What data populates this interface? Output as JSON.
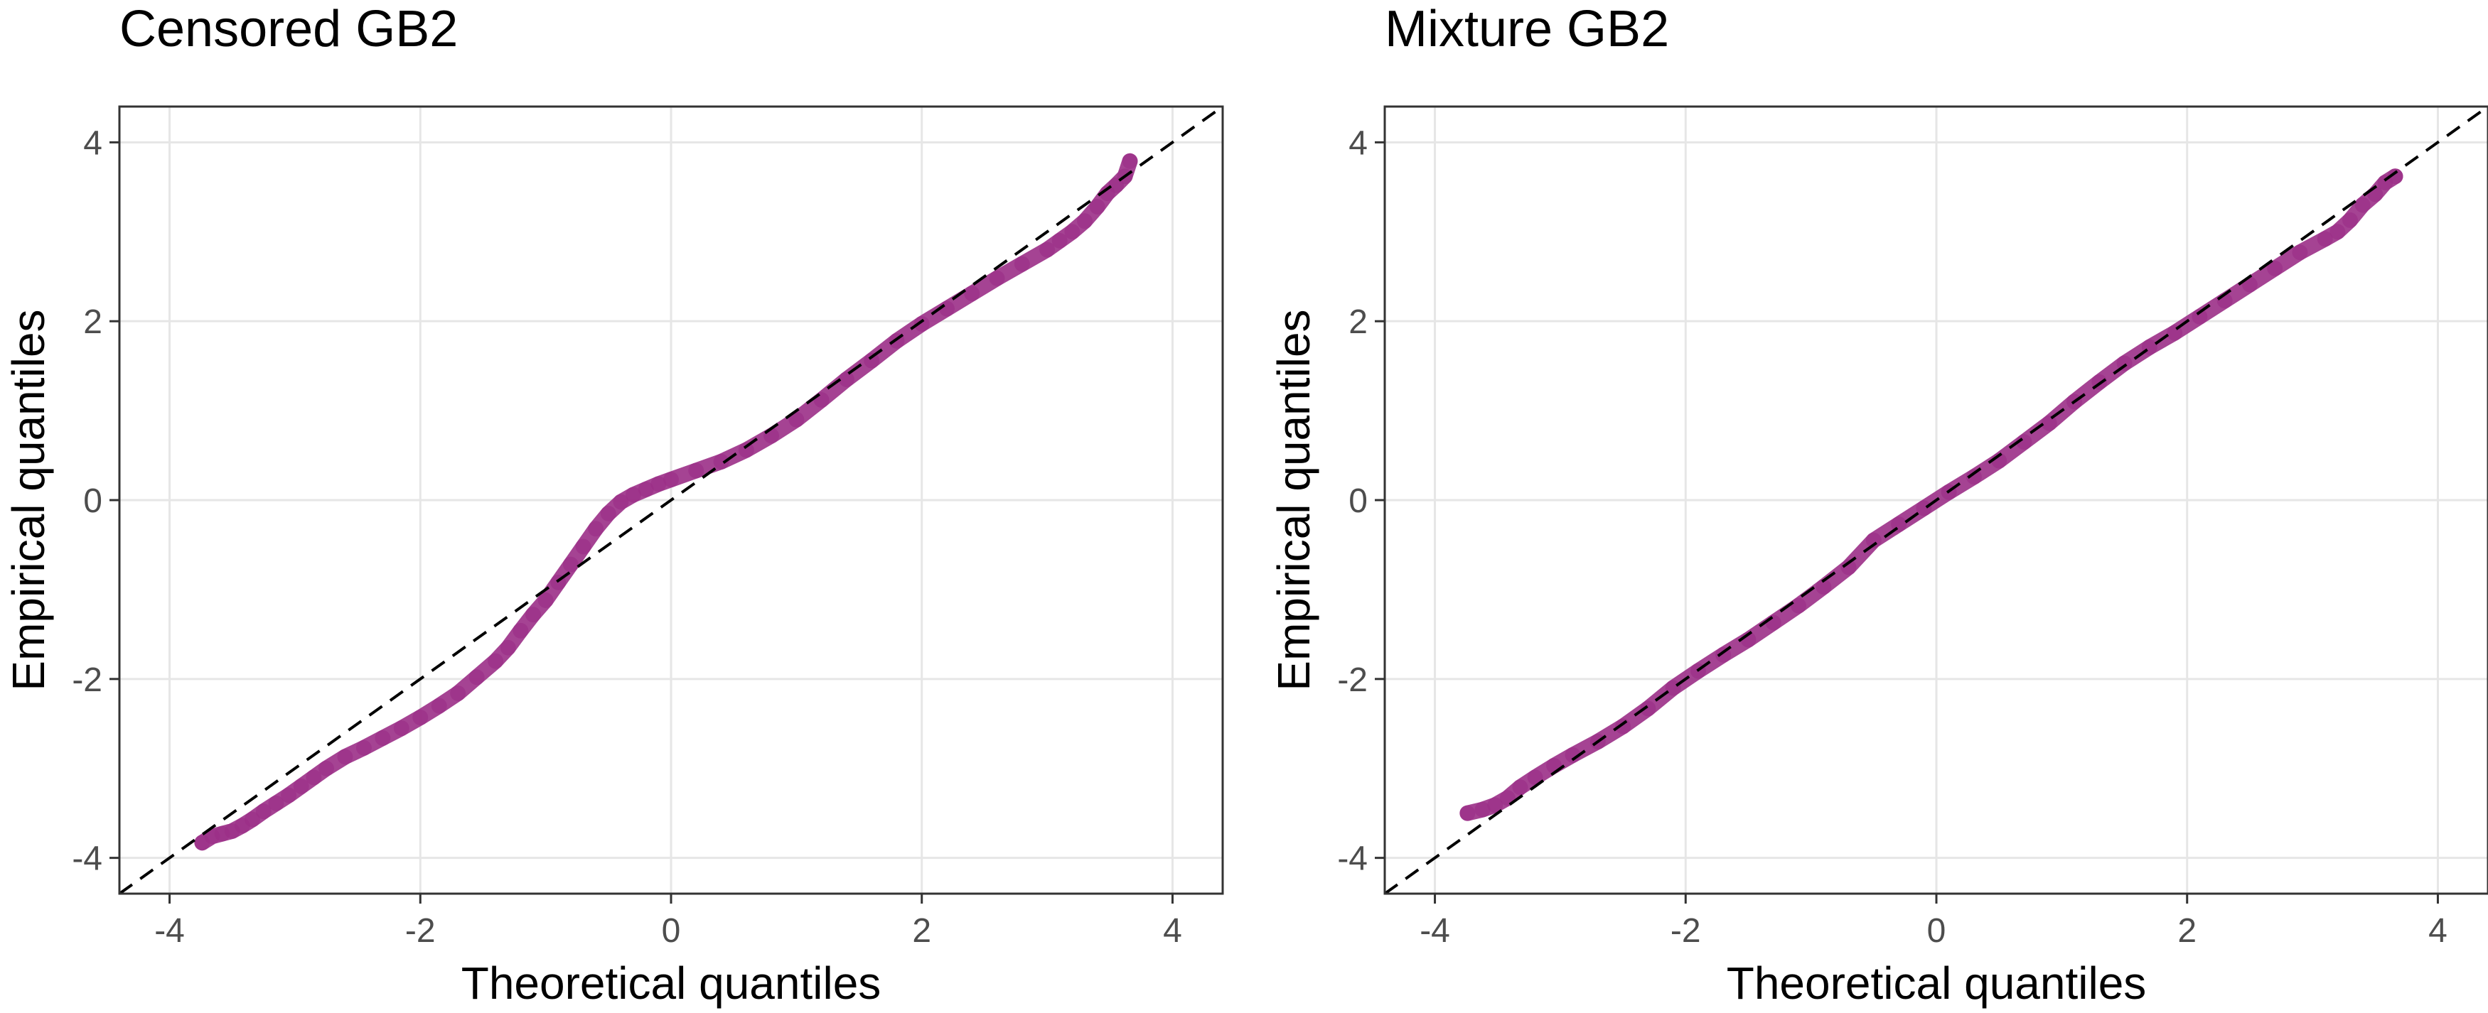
{
  "chart_data": [
    {
      "type": "scatter",
      "title": "Censored GB2",
      "xlabel": "Theoretical quantiles",
      "ylabel": "Empirical quantiles",
      "xlim": [
        -4.4,
        4.4
      ],
      "ylim": [
        -4.4,
        4.4
      ],
      "xticks": [
        -4,
        -2,
        0,
        2,
        4
      ],
      "yticks": [
        -4,
        -2,
        0,
        2,
        4
      ],
      "xtick_labels": [
        "-4",
        "-2",
        "0",
        "2",
        "4"
      ],
      "ytick_labels": [
        "-4",
        "-2",
        "0",
        "2",
        "4"
      ],
      "grid": true,
      "reference_line": {
        "slope": 1,
        "intercept": 0,
        "style": "dashed"
      },
      "point_color": "#9b2f87",
      "points": [
        [
          -3.74,
          -3.83
        ],
        [
          -3.66,
          -3.76
        ],
        [
          -3.58,
          -3.73
        ],
        [
          -3.5,
          -3.7
        ],
        [
          -3.42,
          -3.64
        ],
        [
          -3.34,
          -3.57
        ],
        [
          -3.25,
          -3.48
        ],
        [
          -3.15,
          -3.39
        ],
        [
          -3.05,
          -3.3
        ],
        [
          -2.95,
          -3.2
        ],
        [
          -2.85,
          -3.1
        ],
        [
          -2.75,
          -3.0
        ],
        [
          -2.6,
          -2.87
        ],
        [
          -2.45,
          -2.77
        ],
        [
          -2.3,
          -2.66
        ],
        [
          -2.15,
          -2.55
        ],
        [
          -2.0,
          -2.43
        ],
        [
          -1.85,
          -2.3
        ],
        [
          -1.7,
          -2.16
        ],
        [
          -1.55,
          -1.98
        ],
        [
          -1.4,
          -1.8
        ],
        [
          -1.3,
          -1.65
        ],
        [
          -1.2,
          -1.46
        ],
        [
          -1.1,
          -1.28
        ],
        [
          -1.0,
          -1.12
        ],
        [
          -0.9,
          -0.92
        ],
        [
          -0.8,
          -0.72
        ],
        [
          -0.7,
          -0.52
        ],
        [
          -0.6,
          -0.32
        ],
        [
          -0.5,
          -0.15
        ],
        [
          -0.4,
          -0.02
        ],
        [
          -0.3,
          0.06
        ],
        [
          -0.2,
          0.12
        ],
        [
          -0.1,
          0.18
        ],
        [
          0.0,
          0.23
        ],
        [
          0.2,
          0.33
        ],
        [
          0.4,
          0.43
        ],
        [
          0.6,
          0.56
        ],
        [
          0.8,
          0.72
        ],
        [
          1.0,
          0.9
        ],
        [
          1.2,
          1.12
        ],
        [
          1.4,
          1.35
        ],
        [
          1.6,
          1.56
        ],
        [
          1.8,
          1.78
        ],
        [
          2.0,
          1.97
        ],
        [
          2.2,
          2.14
        ],
        [
          2.4,
          2.31
        ],
        [
          2.6,
          2.48
        ],
        [
          2.8,
          2.64
        ],
        [
          3.0,
          2.8
        ],
        [
          3.1,
          2.9
        ],
        [
          3.2,
          3.0
        ],
        [
          3.3,
          3.12
        ],
        [
          3.4,
          3.28
        ],
        [
          3.48,
          3.43
        ],
        [
          3.55,
          3.52
        ],
        [
          3.62,
          3.62
        ],
        [
          3.66,
          3.79
        ]
      ]
    },
    {
      "type": "scatter",
      "title": "Mixture GB2",
      "xlabel": "Theoretical quantiles",
      "ylabel": "Empirical quantiles",
      "xlim": [
        -4.4,
        4.4
      ],
      "ylim": [
        -4.4,
        4.4
      ],
      "xticks": [
        -4,
        -2,
        0,
        2,
        4
      ],
      "yticks": [
        -4,
        -2,
        0,
        2,
        4
      ],
      "xtick_labels": [
        "-4",
        "-2",
        "0",
        "2",
        "4"
      ],
      "ytick_labels": [
        "-4",
        "-2",
        "0",
        "2",
        "4"
      ],
      "grid": true,
      "reference_line": {
        "slope": 1,
        "intercept": 0,
        "style": "dashed"
      },
      "point_color": "#9b2f87",
      "points": [
        [
          -3.74,
          -3.5
        ],
        [
          -3.62,
          -3.46
        ],
        [
          -3.52,
          -3.41
        ],
        [
          -3.42,
          -3.33
        ],
        [
          -3.32,
          -3.21
        ],
        [
          -3.2,
          -3.1
        ],
        [
          -3.05,
          -2.97
        ],
        [
          -2.9,
          -2.85
        ],
        [
          -2.7,
          -2.7
        ],
        [
          -2.5,
          -2.53
        ],
        [
          -2.3,
          -2.33
        ],
        [
          -2.1,
          -2.1
        ],
        [
          -1.9,
          -1.91
        ],
        [
          -1.7,
          -1.73
        ],
        [
          -1.5,
          -1.56
        ],
        [
          -1.3,
          -1.37
        ],
        [
          -1.1,
          -1.18
        ],
        [
          -0.9,
          -0.97
        ],
        [
          -0.7,
          -0.75
        ],
        [
          -0.5,
          -0.45
        ],
        [
          -0.3,
          -0.27
        ],
        [
          -0.1,
          -0.09
        ],
        [
          0.1,
          0.09
        ],
        [
          0.3,
          0.26
        ],
        [
          0.5,
          0.44
        ],
        [
          0.7,
          0.65
        ],
        [
          0.9,
          0.86
        ],
        [
          1.1,
          1.1
        ],
        [
          1.3,
          1.32
        ],
        [
          1.5,
          1.53
        ],
        [
          1.7,
          1.71
        ],
        [
          1.9,
          1.87
        ],
        [
          2.1,
          2.05
        ],
        [
          2.3,
          2.23
        ],
        [
          2.5,
          2.41
        ],
        [
          2.7,
          2.59
        ],
        [
          2.9,
          2.77
        ],
        [
          3.1,
          2.92
        ],
        [
          3.2,
          3.0
        ],
        [
          3.3,
          3.13
        ],
        [
          3.4,
          3.3
        ],
        [
          3.5,
          3.42
        ],
        [
          3.58,
          3.55
        ],
        [
          3.66,
          3.62
        ]
      ]
    }
  ]
}
